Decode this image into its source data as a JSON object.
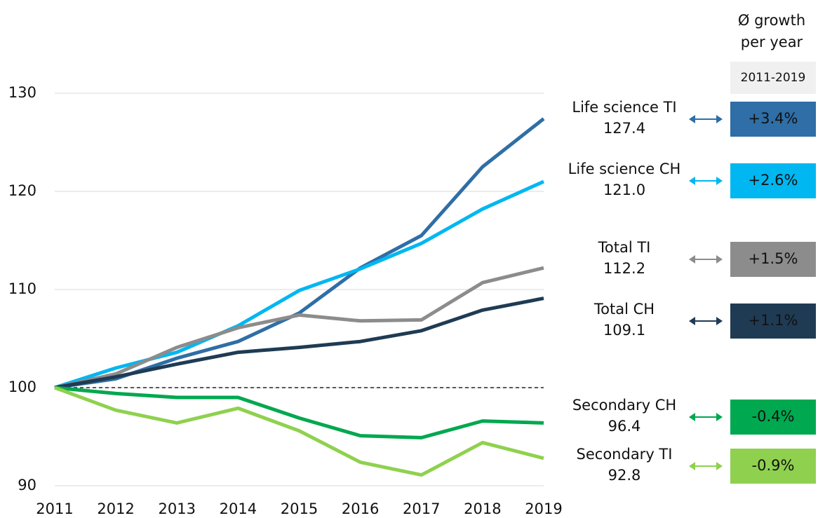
{
  "chart_data": {
    "type": "line",
    "categories": [
      "2011",
      "2012",
      "2013",
      "2014",
      "2015",
      "2016",
      "2017",
      "2018",
      "2019"
    ],
    "series": [
      {
        "name": "Life science TI",
        "color": "#2f6ea6",
        "values": [
          100,
          100.9,
          103.0,
          104.7,
          107.6,
          112.2,
          115.5,
          122.5,
          127.4
        ],
        "value_label": "127.4",
        "growth": 3.4,
        "growth_label": "+3.4%"
      },
      {
        "name": "Life science CH",
        "color": "#00b7f1",
        "values": [
          100,
          102.0,
          103.6,
          106.3,
          109.9,
          112.1,
          114.7,
          118.2,
          121.0
        ],
        "value_label": "121.0",
        "growth": 2.6,
        "growth_label": "+2.6%"
      },
      {
        "name": "Total TI",
        "color": "#8c8c8c",
        "values": [
          100,
          101.4,
          104.1,
          106.1,
          107.4,
          106.8,
          106.9,
          110.7,
          112.2
        ],
        "value_label": "112.2",
        "growth": 1.5,
        "growth_label": "+1.5%"
      },
      {
        "name": "Total CH",
        "color": "#1f3b54",
        "values": [
          100,
          101.1,
          102.4,
          103.6,
          104.1,
          104.7,
          105.8,
          107.9,
          109.1
        ],
        "value_label": "109.1",
        "growth": 1.1,
        "growth_label": "+1.1%"
      },
      {
        "name": "Secondary CH",
        "color": "#00a84f",
        "values": [
          100,
          99.4,
          99.0,
          99.0,
          96.9,
          95.1,
          94.9,
          96.6,
          96.4
        ],
        "value_label": "96.4",
        "growth": -0.4,
        "growth_label": "-0.4%"
      },
      {
        "name": "Secondary TI",
        "color": "#8fd14f",
        "values": [
          100,
          97.7,
          96.4,
          97.9,
          95.6,
          92.4,
          91.1,
          94.4,
          92.8
        ],
        "value_label": "92.8",
        "growth": -0.9,
        "growth_label": "-0.9%"
      }
    ],
    "ylim": [
      90,
      130
    ],
    "yticks": [
      90,
      100,
      110,
      120,
      130
    ],
    "grid": true,
    "reference_line": 100,
    "growth_header": [
      "Ø growth",
      "per year"
    ],
    "growth_period": "2011-2019"
  }
}
